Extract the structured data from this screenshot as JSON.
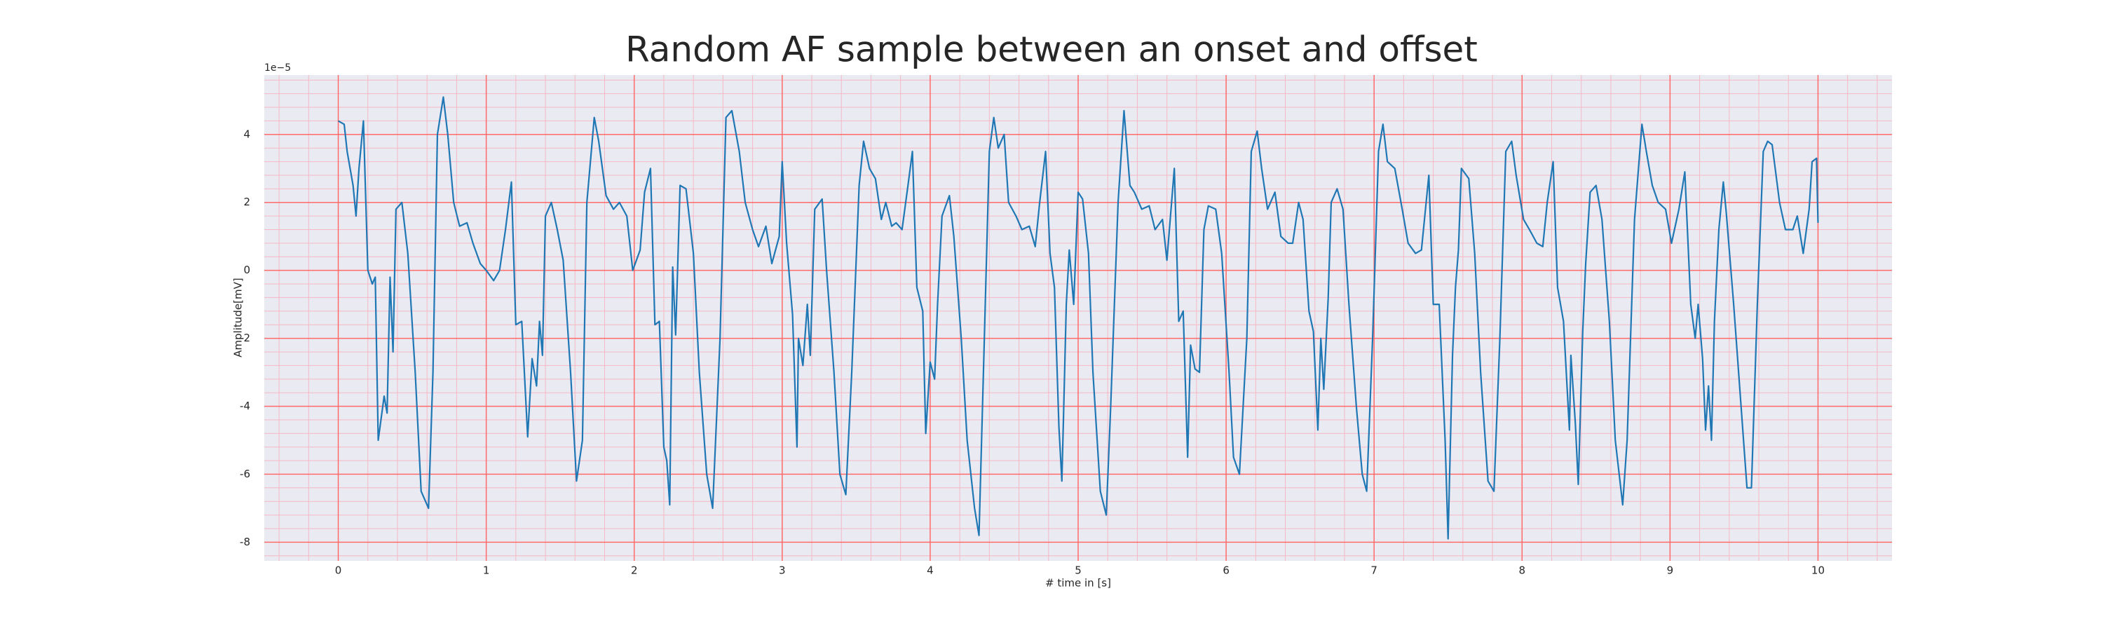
{
  "chart_data": {
    "type": "line",
    "title": "Random AF sample between an onset and offset",
    "x_label": "# time in [s]",
    "y_label": "Amplitude[mV]",
    "y_offset_label": "1e−5",
    "color": "#1f77b4",
    "background": "#eaeaf2",
    "grid": true,
    "grid_color": "#ff6b6b",
    "minor_grid_color": "#f5b8c4",
    "xlim": [
      -0.5,
      10.5
    ],
    "ylim": [
      -8.55,
      5.75
    ],
    "xticks": [
      0,
      1,
      2,
      3,
      4,
      5,
      6,
      7,
      8,
      9,
      10
    ],
    "yticks": [
      -8,
      -6,
      -4,
      -2,
      0,
      2,
      4
    ],
    "xminorticks": [
      -0.4,
      -0.2,
      0,
      0.2,
      0.4,
      0.6,
      0.8,
      1,
      1.2,
      1.4,
      1.6,
      1.8,
      2,
      2.2,
      2.4,
      2.6,
      2.8,
      3,
      3.2,
      3.4,
      3.6,
      3.8,
      4,
      4.2,
      4.4,
      4.6,
      4.8,
      5,
      5.2,
      5.4,
      5.6,
      5.8,
      6,
      6.2,
      6.4,
      6.6,
      6.8,
      7,
      7.2,
      7.4,
      7.6,
      7.8,
      8,
      8.2,
      8.4,
      8.6,
      8.8,
      9,
      9.2,
      9.4,
      9.6,
      9.8,
      10,
      10.2,
      10.4
    ],
    "yminorticks": [
      -8.4,
      -8,
      -7.6,
      -7.2,
      -6.8,
      -6.4,
      -6,
      -5.6,
      -5.2,
      -4.8,
      -4.4,
      -4,
      -3.6,
      -3.2,
      -2.8,
      -2.4,
      -2,
      -1.6,
      -1.2,
      -0.8,
      -0.4,
      0,
      0.4,
      0.8,
      1.2,
      1.6,
      2,
      2.4,
      2.8,
      3.2,
      3.6,
      4,
      4.4,
      4.8,
      5.2,
      5.6
    ],
    "x": [
      0,
      0.04,
      0.06,
      0.1,
      0.12,
      0.14,
      0.17,
      0.2,
      0.23,
      0.25,
      0.27,
      0.31,
      0.33,
      0.35,
      0.37,
      0.39,
      0.43,
      0.47,
      0.52,
      0.56,
      0.61,
      0.64,
      0.67,
      0.71,
      0.74,
      0.78,
      0.82,
      0.87,
      0.91,
      0.96,
      1.0,
      1.05,
      1.09,
      1.13,
      1.17,
      1.2,
      1.24,
      1.28,
      1.31,
      1.34,
      1.36,
      1.38,
      1.4,
      1.44,
      1.48,
      1.52,
      1.57,
      1.61,
      1.65,
      1.68,
      1.73,
      1.76,
      1.81,
      1.86,
      1.9,
      1.95,
      1.99,
      2.04,
      2.07,
      2.11,
      2.14,
      2.17,
      2.2,
      2.22,
      2.24,
      2.26,
      2.28,
      2.31,
      2.35,
      2.4,
      2.44,
      2.49,
      2.53,
      2.58,
      2.62,
      2.66,
      2.71,
      2.75,
      2.8,
      2.84,
      2.89,
      2.93,
      2.98,
      3.0,
      3.03,
      3.07,
      3.1,
      3.11,
      3.14,
      3.17,
      3.19,
      3.22,
      3.27,
      3.3,
      3.35,
      3.39,
      3.43,
      3.47,
      3.52,
      3.55,
      3.59,
      3.63,
      3.67,
      3.7,
      3.74,
      3.77,
      3.81,
      3.85,
      3.88,
      3.91,
      3.95,
      3.97,
      4.0,
      4.03,
      4.05,
      4.08,
      4.13,
      4.16,
      4.21,
      4.25,
      4.3,
      4.33,
      4.36,
      4.4,
      4.43,
      4.46,
      4.5,
      4.53,
      4.58,
      4.62,
      4.67,
      4.71,
      4.74,
      4.78,
      4.81,
      4.84,
      4.87,
      4.89,
      4.9,
      4.92,
      4.94,
      4.97,
      5.0,
      5.03,
      5.07,
      5.1,
      5.15,
      5.19,
      5.22,
      5.27,
      5.31,
      5.35,
      5.38,
      5.43,
      5.48,
      5.52,
      5.57,
      5.6,
      5.65,
      5.68,
      5.71,
      5.74,
      5.76,
      5.79,
      5.82,
      5.85,
      5.88,
      5.93,
      5.97,
      6.02,
      6.05,
      6.09,
      6.14,
      6.17,
      6.21,
      6.24,
      6.28,
      6.33,
      6.37,
      6.42,
      6.45,
      6.49,
      6.52,
      6.56,
      6.59,
      6.62,
      6.64,
      6.66,
      6.69,
      6.71,
      6.75,
      6.79,
      6.83,
      6.88,
      6.92,
      6.95,
      6.99,
      7.03,
      7.06,
      7.09,
      7.14,
      7.19,
      7.23,
      7.28,
      7.32,
      7.37,
      7.4,
      7.44,
      7.47,
      7.48,
      7.5,
      7.53,
      7.55,
      7.57,
      7.59,
      7.64,
      7.68,
      7.72,
      7.77,
      7.81,
      7.85,
      7.89,
      7.93,
      7.96,
      8.01,
      8.05,
      8.1,
      8.14,
      8.17,
      8.21,
      8.24,
      8.28,
      8.32,
      8.33,
      8.36,
      8.38,
      8.41,
      8.43,
      8.46,
      8.5,
      8.54,
      8.59,
      8.63,
      8.68,
      8.71,
      8.76,
      8.81,
      8.84,
      8.88,
      8.92,
      8.97,
      9.01,
      9.06,
      9.1,
      9.14,
      9.17,
      9.19,
      9.22,
      9.24,
      9.26,
      9.28,
      9.3,
      9.33,
      9.36,
      9.38,
      9.43,
      9.48,
      9.52,
      9.55,
      9.59,
      9.63,
      9.66,
      9.69,
      9.74,
      9.78,
      9.83,
      9.86,
      9.9,
      9.94,
      9.96,
      9.99,
      10.0
    ],
    "values": [
      4.4,
      4.3,
      3.5,
      2.5,
      1.6,
      3.0,
      4.4,
      0,
      -0.4,
      -0.2,
      -5.0,
      -3.7,
      -4.2,
      -0.2,
      -2.4,
      1.8,
      2.0,
      0.5,
      -3.0,
      -6.5,
      -7.0,
      -3,
      4,
      5.1,
      4.0,
      2,
      1.3,
      1.4,
      0.8,
      0.2,
      0,
      -0.3,
      0,
      1.2,
      2.6,
      -1.6,
      -1.5,
      -4.9,
      -2.6,
      -3.4,
      -1.5,
      -2.5,
      1.6,
      2.0,
      1.2,
      0.3,
      -3,
      -6.2,
      -5,
      2,
      4.5,
      3.8,
      2.2,
      1.8,
      2.0,
      1.6,
      0,
      0.6,
      2.3,
      3.0,
      -1.6,
      -1.5,
      -5.2,
      -5.6,
      -6.9,
      0.1,
      -1.9,
      2.5,
      2.4,
      0.5,
      -3,
      -6,
      -7,
      -2,
      4.5,
      4.7,
      3.5,
      2.0,
      1.2,
      0.7,
      1.3,
      0.2,
      1.0,
      3.2,
      0.8,
      -1.3,
      -5.2,
      -2.0,
      -2.8,
      -1.0,
      -2.5,
      1.8,
      2.1,
      0,
      -3,
      -6,
      -6.6,
      -3,
      2.5,
      3.8,
      3.0,
      2.7,
      1.5,
      2.0,
      1.3,
      1.4,
      1.2,
      2.5,
      3.5,
      -0.5,
      -1.2,
      -4.8,
      -2.7,
      -3.2,
      -1.0,
      1.6,
      2.2,
      1.0,
      -2,
      -5,
      -7,
      -7.8,
      -3,
      3.5,
      4.5,
      3.6,
      4.0,
      2.0,
      1.6,
      1.2,
      1.3,
      0.7,
      2.0,
      3.5,
      0.5,
      -0.5,
      -4.6,
      -6.2,
      -4.5,
      -1.0,
      0.6,
      -1.0,
      2.3,
      2.1,
      0.5,
      -3,
      -6.5,
      -7.2,
      -4,
      2,
      4.7,
      2.5,
      2.3,
      1.8,
      1.9,
      1.2,
      1.5,
      0.3,
      3.0,
      -1.5,
      -1.2,
      -5.5,
      -2.2,
      -2.9,
      -3.0,
      1.2,
      1.9,
      1.8,
      0.5,
      -3,
      -5.5,
      -6,
      -2,
      3.5,
      4.1,
      3.0,
      1.8,
      2.3,
      1.0,
      0.8,
      0.8,
      2.0,
      1.5,
      -1.2,
      -1.8,
      -4.7,
      -2.0,
      -3.5,
      -0.8,
      2.0,
      2.4,
      1.8,
      -1,
      -4,
      -6,
      -6.5,
      -2,
      3.5,
      4.3,
      3.2,
      3.0,
      1.8,
      0.8,
      0.5,
      0.6,
      2.8,
      -1.0,
      -1.0,
      -4.0,
      -5.0,
      -7.9,
      -2.5,
      -0.5,
      0.6,
      3.0,
      2.7,
      0.5,
      -3,
      -6.2,
      -6.5,
      -2,
      3.5,
      3.8,
      2.8,
      1.5,
      1.2,
      0.8,
      0.7,
      2.0,
      3.2,
      -0.5,
      -1.5,
      -4.7,
      -2.5,
      -4.5,
      -6.3,
      -1.8,
      0.2,
      2.3,
      2.5,
      1.5,
      -1.5,
      -5,
      -6.9,
      -5,
      1.5,
      4.3,
      3.5,
      2.5,
      2.0,
      1.8,
      0.8,
      1.8,
      2.9,
      -1.0,
      -2.0,
      -1.0,
      -2.6,
      -4.7,
      -3.4,
      -5.0,
      -1.5,
      1.2,
      2.6,
      1.7,
      -1,
      -4,
      -6.4,
      -6.4,
      -1,
      3.5,
      3.8,
      3.7,
      2.0,
      1.2,
      1.2,
      1.6,
      0.5,
      1.8,
      3.2,
      3.3,
      1.4
    ]
  }
}
